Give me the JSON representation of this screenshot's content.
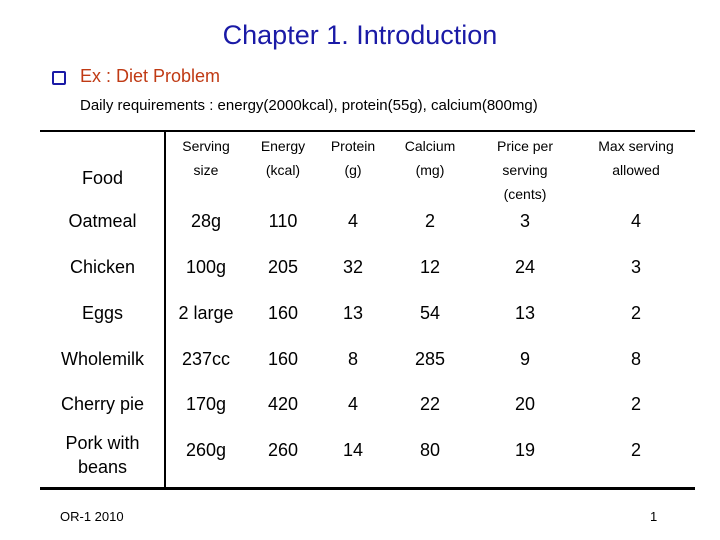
{
  "title": "Chapter 1. Introduction",
  "bullet": {
    "icon": "checkbox-bullet-icon",
    "text": "Ex : Diet Problem"
  },
  "requirements": "Daily requirements : energy(2000kcal), protein(55g), calcium(800mg)",
  "table": {
    "headers": {
      "food": "Food",
      "serving": [
        "Serving",
        "size"
      ],
      "energy": [
        "Energy",
        "(kcal)"
      ],
      "protein": [
        "Protein",
        "(g)"
      ],
      "calcium": [
        "Calcium",
        "(mg)"
      ],
      "price": [
        "Price per",
        "serving",
        "(cents)"
      ],
      "max": [
        "Max serving",
        "allowed"
      ]
    },
    "rows": [
      {
        "food": [
          "Oatmeal"
        ],
        "size": "28g",
        "energy": "110",
        "protein": "4",
        "calcium": "2",
        "price": "3",
        "max": "4"
      },
      {
        "food": [
          "Chicken"
        ],
        "size": "100g",
        "energy": "205",
        "protein": "32",
        "calcium": "12",
        "price": "24",
        "max": "3"
      },
      {
        "food": [
          "Eggs"
        ],
        "size": "2 large",
        "energy": "160",
        "protein": "13",
        "calcium": "54",
        "price": "13",
        "max": "2"
      },
      {
        "food": [
          "Wholemilk"
        ],
        "size": "237cc",
        "energy": "160",
        "protein": "8",
        "calcium": "285",
        "price": "9",
        "max": "8"
      },
      {
        "food": [
          "Cherry pie"
        ],
        "size": "170g",
        "energy": "420",
        "protein": "4",
        "calcium": "22",
        "price": "20",
        "max": "2"
      },
      {
        "food": [
          "Pork with",
          "beans"
        ],
        "size": "260g",
        "energy": "260",
        "protein": "14",
        "calcium": "80",
        "price": "19",
        "max": "2"
      }
    ]
  },
  "footer": {
    "left": "OR-1 2010",
    "page": "1"
  }
}
